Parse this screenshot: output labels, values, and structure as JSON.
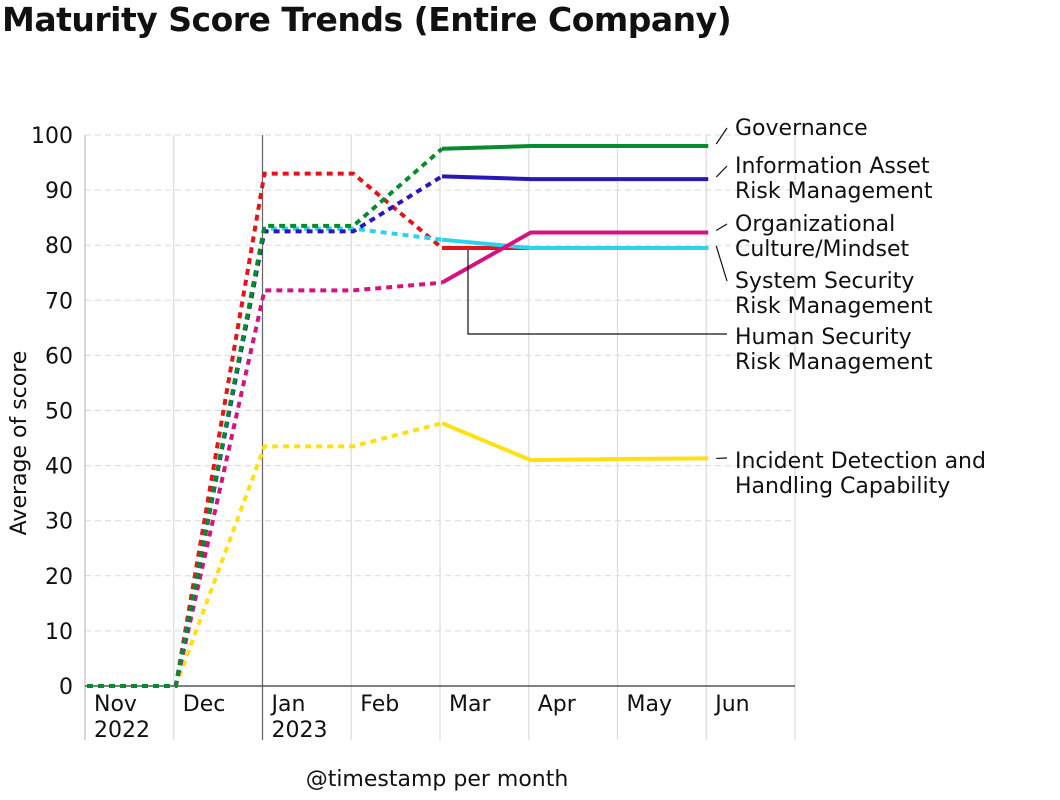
{
  "title": "Maturity Score Trends (Entire Company)",
  "chart_data": {
    "type": "line",
    "title": "Maturity Score Trends (Entire Company)",
    "xlabel": "@timestamp per month",
    "ylabel": "Average of score",
    "ylim": [
      0,
      100
    ],
    "yticks": [
      0,
      10,
      20,
      30,
      40,
      50,
      60,
      70,
      80,
      90,
      100
    ],
    "categories": [
      "Nov",
      "Dec",
      "Jan",
      "Feb",
      "Mar",
      "Apr",
      "May",
      "Jun"
    ],
    "category_lines": [
      [
        "Nov",
        "2022"
      ],
      [
        "Dec"
      ],
      [
        "Jan",
        "2023"
      ],
      [
        "Feb"
      ],
      [
        "Mar"
      ],
      [
        "Apr"
      ],
      [
        "May"
      ],
      [
        "Jun"
      ]
    ],
    "grid": true,
    "legend_position": "right (labels at line ends)",
    "series": [
      {
        "name": "Governance",
        "label_lines": [
          "Governance"
        ],
        "color": "#0a8a2e",
        "values": [
          0,
          0,
          83.5,
          83.5,
          97.5,
          98,
          98,
          98
        ]
      },
      {
        "name": "Information Asset Risk Management",
        "label_lines": [
          "Information Asset",
          "Risk Management"
        ],
        "color": "#2a17b8",
        "values": [
          0,
          0,
          82.5,
          82.5,
          92.5,
          92,
          92,
          92
        ]
      },
      {
        "name": "Organizational Culture/Mindset",
        "label_lines": [
          "Organizational",
          "Culture/Mindset"
        ],
        "color": "#d4147e",
        "values": [
          0,
          0,
          71.8,
          71.8,
          73.2,
          82.3,
          82.3,
          82.3
        ]
      },
      {
        "name": "System Security Risk Management",
        "label_lines": [
          "System Security",
          "Risk Management"
        ],
        "color": "#2dd4e8",
        "values": [
          0,
          0,
          83,
          83,
          81,
          79.5,
          79.5,
          79.5
        ]
      },
      {
        "name": "Human Security Risk Management",
        "label_lines": [
          "Human Security",
          "Risk Management"
        ],
        "color": "#e3151b",
        "values": [
          0,
          0,
          93,
          93,
          79.5,
          79.5,
          79.5,
          79.5
        ]
      },
      {
        "name": "Incident Detection and Handling Capability",
        "label_lines": [
          "Incident Detection and",
          "Handling Capability"
        ],
        "color": "#ffe014",
        "values": [
          0,
          0,
          43.5,
          43.5,
          47.7,
          41,
          41.2,
          41.3
        ]
      }
    ]
  }
}
